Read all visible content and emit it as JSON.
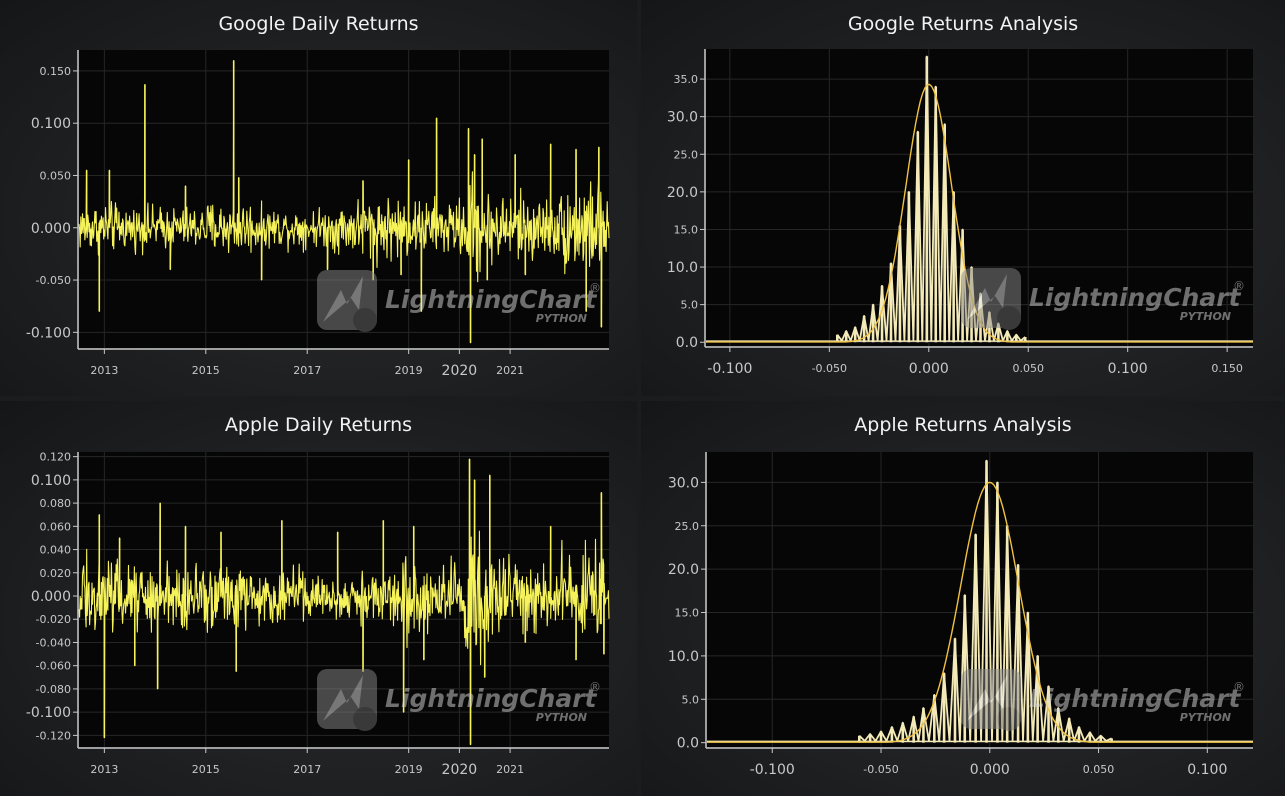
{
  "colors": {
    "returns_line": "#f5f25a",
    "histogram_bars": "#f3eab8",
    "fit_curve": "#f0c242",
    "plot_background": "#060606",
    "grid": "#262626",
    "axis": "#c9c9c9"
  },
  "watermark": {
    "brand": "LightningChart",
    "registered": "®",
    "sub": "PYTHON",
    "logo_icon": "lightning-bolt-with-python-logo"
  },
  "chart_data": [
    {
      "type": "line",
      "title": "Google Daily Returns",
      "xlabel": "",
      "ylabel": "",
      "xlim": [
        2012.5,
        2022.95
      ],
      "ylim": [
        -0.115,
        0.17
      ],
      "grid": true,
      "x_ticks": [
        {
          "value": 2013,
          "label": "2013",
          "major": false
        },
        {
          "value": 2015,
          "label": "2015",
          "major": false
        },
        {
          "value": 2017,
          "label": "2017",
          "major": false
        },
        {
          "value": 2019,
          "label": "2019",
          "major": false
        },
        {
          "value": 2020,
          "label": "2020",
          "major": true
        },
        {
          "value": 2021,
          "label": "2021",
          "major": false
        }
      ],
      "y_ticks": [
        {
          "value": 0.15,
          "label": "0.150",
          "major": false
        },
        {
          "value": 0.1,
          "label": "0.100",
          "major": true
        },
        {
          "value": 0.05,
          "label": "0.050",
          "major": false
        },
        {
          "value": 0.0,
          "label": "0.000",
          "major": true
        },
        {
          "value": -0.05,
          "label": "-0.050",
          "major": false
        },
        {
          "value": -0.1,
          "label": "-0.100",
          "major": true
        }
      ],
      "series": [
        {
          "color": "#f5f25a",
          "noise": [
            {
              "from": 2012.5,
              "amp": 0.014
            },
            {
              "from": 2013.3,
              "amp": 0.012
            },
            {
              "from": 2015.0,
              "amp": 0.015
            },
            {
              "from": 2016.0,
              "amp": 0.011
            },
            {
              "from": 2017.5,
              "amp": 0.014
            },
            {
              "from": 2018.0,
              "amp": 0.018
            },
            {
              "from": 2019.0,
              "amp": 0.016
            },
            {
              "from": 2020.1,
              "amp": 0.03
            },
            {
              "from": 2020.5,
              "amp": 0.02
            },
            {
              "from": 2021.5,
              "amp": 0.017
            },
            {
              "from": 2022.0,
              "amp": 0.026
            },
            {
              "to": 2022.95
            }
          ],
          "spikes": [
            {
              "x": 2012.65,
              "y": 0.055
            },
            {
              "x": 2012.9,
              "y": -0.08
            },
            {
              "x": 2013.1,
              "y": 0.055
            },
            {
              "x": 2013.8,
              "y": 0.137
            },
            {
              "x": 2014.3,
              "y": -0.04
            },
            {
              "x": 2014.6,
              "y": 0.04
            },
            {
              "x": 2015.55,
              "y": 0.16
            },
            {
              "x": 2015.65,
              "y": 0.048
            },
            {
              "x": 2016.1,
              "y": -0.05
            },
            {
              "x": 2017.4,
              "y": -0.04
            },
            {
              "x": 2018.1,
              "y": 0.045
            },
            {
              "x": 2018.3,
              "y": -0.05
            },
            {
              "x": 2018.85,
              "y": -0.045
            },
            {
              "x": 2019.0,
              "y": 0.065
            },
            {
              "x": 2019.25,
              "y": -0.08
            },
            {
              "x": 2019.55,
              "y": 0.105
            },
            {
              "x": 2020.18,
              "y": 0.095
            },
            {
              "x": 2020.22,
              "y": -0.11
            },
            {
              "x": 2020.3,
              "y": 0.07
            },
            {
              "x": 2020.45,
              "y": 0.085
            },
            {
              "x": 2020.55,
              "y": -0.05
            },
            {
              "x": 2021.1,
              "y": 0.07
            },
            {
              "x": 2021.3,
              "y": -0.045
            },
            {
              "x": 2021.8,
              "y": 0.08
            },
            {
              "x": 2022.3,
              "y": 0.075
            },
            {
              "x": 2022.5,
              "y": -0.08
            },
            {
              "x": 2022.75,
              "y": 0.077
            },
            {
              "x": 2022.8,
              "y": -0.095
            }
          ]
        }
      ]
    },
    {
      "type": "bar",
      "title": "Google Returns Analysis",
      "xlabel": "",
      "ylabel": "",
      "xlim": [
        -0.112,
        0.163
      ],
      "ylim": [
        -0.5,
        39
      ],
      "grid": true,
      "x_ticks": [
        {
          "value": -0.1,
          "label": "-0.100",
          "major": true
        },
        {
          "value": -0.05,
          "label": "-0.050",
          "major": false
        },
        {
          "value": 0.0,
          "label": "0.000",
          "major": true
        },
        {
          "value": 0.05,
          "label": "0.050",
          "major": false
        },
        {
          "value": 0.1,
          "label": "0.100",
          "major": true
        },
        {
          "value": 0.15,
          "label": "0.150",
          "major": false
        }
      ],
      "y_ticks": [
        {
          "value": 35,
          "label": "35.0",
          "major": false
        },
        {
          "value": 30,
          "label": "30.0",
          "major": true
        },
        {
          "value": 25,
          "label": "25.0",
          "major": false
        },
        {
          "value": 20,
          "label": "20.0",
          "major": true
        },
        {
          "value": 15,
          "label": "15.0",
          "major": false
        },
        {
          "value": 10,
          "label": "10.0",
          "major": true
        },
        {
          "value": 5,
          "label": "5.0",
          "major": false
        },
        {
          "value": 0,
          "label": "0.0",
          "major": true
        }
      ],
      "histogram": {
        "color": "#f3eab8",
        "bins": [
          {
            "x": -0.046,
            "y": 1.0
          },
          {
            "x": -0.0415,
            "y": 1.5
          },
          {
            "x": -0.037,
            "y": 2.0
          },
          {
            "x": -0.0325,
            "y": 3.5
          },
          {
            "x": -0.028,
            "y": 5.0
          },
          {
            "x": -0.0235,
            "y": 7.5
          },
          {
            "x": -0.019,
            "y": 10.5
          },
          {
            "x": -0.0145,
            "y": 15.5
          },
          {
            "x": -0.01,
            "y": 20.0
          },
          {
            "x": -0.0055,
            "y": 28.0
          },
          {
            "x": -0.001,
            "y": 38.0
          },
          {
            "x": 0.0035,
            "y": 34.0
          },
          {
            "x": 0.008,
            "y": 29.0
          },
          {
            "x": 0.0125,
            "y": 20.0
          },
          {
            "x": 0.017,
            "y": 15.0
          },
          {
            "x": 0.0215,
            "y": 10.0
          },
          {
            "x": 0.026,
            "y": 6.5
          },
          {
            "x": 0.0305,
            "y": 4.0
          },
          {
            "x": 0.035,
            "y": 2.5
          },
          {
            "x": 0.0395,
            "y": 1.5
          },
          {
            "x": 0.044,
            "y": 1.0
          },
          {
            "x": 0.0485,
            "y": 0.7
          }
        ]
      },
      "fit": {
        "type": "normal",
        "mean": 0.0,
        "sd": 0.0115,
        "peak": 34.3,
        "color": "#f0c242"
      }
    },
    {
      "type": "line",
      "title": "Apple Daily Returns",
      "xlabel": "",
      "ylabel": "",
      "xlim": [
        2012.5,
        2022.95
      ],
      "ylim": [
        -0.13,
        0.124
      ],
      "grid": true,
      "x_ticks": [
        {
          "value": 2013,
          "label": "2013",
          "major": false
        },
        {
          "value": 2015,
          "label": "2015",
          "major": false
        },
        {
          "value": 2017,
          "label": "2017",
          "major": false
        },
        {
          "value": 2019,
          "label": "2019",
          "major": false
        },
        {
          "value": 2020,
          "label": "2020",
          "major": true
        },
        {
          "value": 2021,
          "label": "2021",
          "major": false
        }
      ],
      "y_ticks": [
        {
          "value": 0.12,
          "label": "0.120",
          "major": false
        },
        {
          "value": 0.1,
          "label": "0.100",
          "major": true
        },
        {
          "value": 0.08,
          "label": "0.080",
          "major": false
        },
        {
          "value": 0.06,
          "label": "0.060",
          "major": false
        },
        {
          "value": 0.04,
          "label": "0.040",
          "major": false
        },
        {
          "value": 0.02,
          "label": "0.020",
          "major": false
        },
        {
          "value": 0.0,
          "label": "0.000",
          "major": true
        },
        {
          "value": -0.02,
          "label": "-0.020",
          "major": false
        },
        {
          "value": -0.04,
          "label": "-0.040",
          "major": false
        },
        {
          "value": -0.06,
          "label": "-0.060",
          "major": false
        },
        {
          "value": -0.08,
          "label": "-0.080",
          "major": false
        },
        {
          "value": -0.1,
          "label": "-0.100",
          "major": true
        },
        {
          "value": -0.12,
          "label": "-0.120",
          "major": false
        }
      ],
      "series": [
        {
          "color": "#f5f25a",
          "noise": [
            {
              "from": 2012.5,
              "amp": 0.02
            },
            {
              "from": 2013.5,
              "amp": 0.016
            },
            {
              "from": 2015.0,
              "amp": 0.017
            },
            {
              "from": 2016.0,
              "amp": 0.014
            },
            {
              "from": 2017.0,
              "amp": 0.01
            },
            {
              "from": 2018.0,
              "amp": 0.015
            },
            {
              "from": 2018.7,
              "amp": 0.02
            },
            {
              "from": 2019.4,
              "amp": 0.016
            },
            {
              "from": 2020.1,
              "amp": 0.04
            },
            {
              "from": 2020.45,
              "amp": 0.026
            },
            {
              "from": 2021.0,
              "amp": 0.017
            },
            {
              "from": 2022.0,
              "amp": 0.026
            },
            {
              "to": 2022.95
            }
          ],
          "spikes": [
            {
              "x": 2012.9,
              "y": 0.07
            },
            {
              "x": 2013.0,
              "y": -0.122
            },
            {
              "x": 2013.3,
              "y": 0.05
            },
            {
              "x": 2013.6,
              "y": -0.06
            },
            {
              "x": 2014.1,
              "y": 0.08
            },
            {
              "x": 2014.05,
              "y": -0.08
            },
            {
              "x": 2014.6,
              "y": 0.06
            },
            {
              "x": 2015.6,
              "y": -0.065
            },
            {
              "x": 2015.3,
              "y": 0.055
            },
            {
              "x": 2016.5,
              "y": 0.065
            },
            {
              "x": 2017.6,
              "y": 0.055
            },
            {
              "x": 2018.1,
              "y": -0.065
            },
            {
              "x": 2018.5,
              "y": 0.065
            },
            {
              "x": 2018.9,
              "y": -0.1
            },
            {
              "x": 2019.1,
              "y": 0.06
            },
            {
              "x": 2019.3,
              "y": -0.055
            },
            {
              "x": 2020.2,
              "y": 0.118
            },
            {
              "x": 2020.22,
              "y": -0.128
            },
            {
              "x": 2020.3,
              "y": 0.1
            },
            {
              "x": 2020.5,
              "y": -0.07
            },
            {
              "x": 2020.6,
              "y": 0.104
            },
            {
              "x": 2021.3,
              "y": -0.04
            },
            {
              "x": 2021.8,
              "y": 0.06
            },
            {
              "x": 2022.3,
              "y": -0.055
            },
            {
              "x": 2022.8,
              "y": 0.089
            },
            {
              "x": 2022.85,
              "y": -0.05
            }
          ]
        }
      ]
    },
    {
      "type": "bar",
      "title": "Apple Returns Analysis",
      "xlabel": "",
      "ylabel": "",
      "xlim": [
        -0.13,
        0.121
      ],
      "ylim": [
        -0.5,
        33.5
      ],
      "grid": true,
      "x_ticks": [
        {
          "value": -0.1,
          "label": "-0.100",
          "major": true
        },
        {
          "value": -0.05,
          "label": "-0.050",
          "major": false
        },
        {
          "value": 0.0,
          "label": "0.000",
          "major": true
        },
        {
          "value": 0.05,
          "label": "0.050",
          "major": false
        },
        {
          "value": 0.1,
          "label": "0.100",
          "major": true
        }
      ],
      "y_ticks": [
        {
          "value": 30,
          "label": "30.0",
          "major": true
        },
        {
          "value": 25,
          "label": "25.0",
          "major": false
        },
        {
          "value": 20,
          "label": "20.0",
          "major": true
        },
        {
          "value": 15,
          "label": "15.0",
          "major": false
        },
        {
          "value": 10,
          "label": "10.0",
          "major": true
        },
        {
          "value": 5,
          "label": "5.0",
          "major": false
        },
        {
          "value": 0,
          "label": "0.0",
          "major": true
        }
      ],
      "histogram": {
        "color": "#f3eab8",
        "bins": [
          {
            "x": -0.06,
            "y": 0.8
          },
          {
            "x": -0.055,
            "y": 1.0
          },
          {
            "x": -0.05,
            "y": 1.3
          },
          {
            "x": -0.045,
            "y": 1.8
          },
          {
            "x": -0.04,
            "y": 2.3
          },
          {
            "x": -0.035,
            "y": 3.0
          },
          {
            "x": -0.0305,
            "y": 4.0
          },
          {
            "x": -0.0255,
            "y": 5.5
          },
          {
            "x": -0.021,
            "y": 8.0
          },
          {
            "x": -0.016,
            "y": 12.0
          },
          {
            "x": -0.0115,
            "y": 17.0
          },
          {
            "x": -0.0065,
            "y": 24.0
          },
          {
            "x": -0.0015,
            "y": 32.5
          },
          {
            "x": 0.0035,
            "y": 30.0
          },
          {
            "x": 0.008,
            "y": 25.0
          },
          {
            "x": 0.013,
            "y": 20.5
          },
          {
            "x": 0.0175,
            "y": 15.0
          },
          {
            "x": 0.022,
            "y": 10.0
          },
          {
            "x": 0.027,
            "y": 6.5
          },
          {
            "x": 0.0315,
            "y": 4.0
          },
          {
            "x": 0.0365,
            "y": 2.8
          },
          {
            "x": 0.041,
            "y": 1.8
          },
          {
            "x": 0.046,
            "y": 1.2
          },
          {
            "x": 0.051,
            "y": 0.8
          },
          {
            "x": 0.056,
            "y": 0.5
          }
        ]
      },
      "fit": {
        "type": "normal",
        "mean": 0.0,
        "sd": 0.0133,
        "peak": 30.0,
        "color": "#f0c242"
      }
    }
  ]
}
